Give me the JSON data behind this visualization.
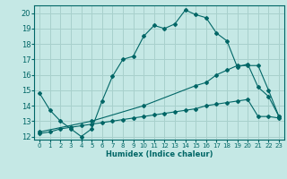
{
  "title": "",
  "xlabel": "Humidex (Indice chaleur)",
  "ylabel": "",
  "bg_color": "#c5e8e5",
  "line_color": "#006666",
  "grid_color": "#a8d0cc",
  "xlim": [
    -0.5,
    23.5
  ],
  "ylim": [
    11.8,
    20.5
  ],
  "yticks": [
    12,
    13,
    14,
    15,
    16,
    17,
    18,
    19,
    20
  ],
  "xticks": [
    0,
    1,
    2,
    3,
    4,
    5,
    6,
    7,
    8,
    9,
    10,
    11,
    12,
    13,
    14,
    15,
    16,
    17,
    18,
    19,
    20,
    21,
    22,
    23
  ],
  "line1_x": [
    0,
    1,
    2,
    3,
    4,
    5,
    6,
    7,
    8,
    9,
    10,
    11,
    12,
    13,
    14,
    15,
    16,
    17,
    18,
    19,
    20,
    21,
    22,
    23
  ],
  "line1_y": [
    14.8,
    13.7,
    13.0,
    12.5,
    12.0,
    12.5,
    14.3,
    15.9,
    17.0,
    17.2,
    18.5,
    19.2,
    19.0,
    19.3,
    20.2,
    19.9,
    19.7,
    18.7,
    18.2,
    16.5,
    16.7,
    15.2,
    14.6,
    13.3
  ],
  "line2_x": [
    0,
    1,
    2,
    3,
    4,
    5,
    6,
    7,
    8,
    9,
    10,
    11,
    12,
    13,
    14,
    15,
    16,
    17,
    18,
    19,
    20,
    21,
    22,
    23
  ],
  "line2_y": [
    12.2,
    12.3,
    12.5,
    12.6,
    12.7,
    12.8,
    12.9,
    13.0,
    13.1,
    13.2,
    13.3,
    13.4,
    13.5,
    13.6,
    13.7,
    13.8,
    14.0,
    14.1,
    14.2,
    14.3,
    14.4,
    13.3,
    13.3,
    13.2
  ],
  "line3_x": [
    0,
    5,
    10,
    15,
    16,
    17,
    18,
    19,
    20,
    21,
    22,
    23
  ],
  "line3_y": [
    12.3,
    13.0,
    14.0,
    15.3,
    15.5,
    16.0,
    16.3,
    16.6,
    16.6,
    16.6,
    15.0,
    13.3
  ]
}
